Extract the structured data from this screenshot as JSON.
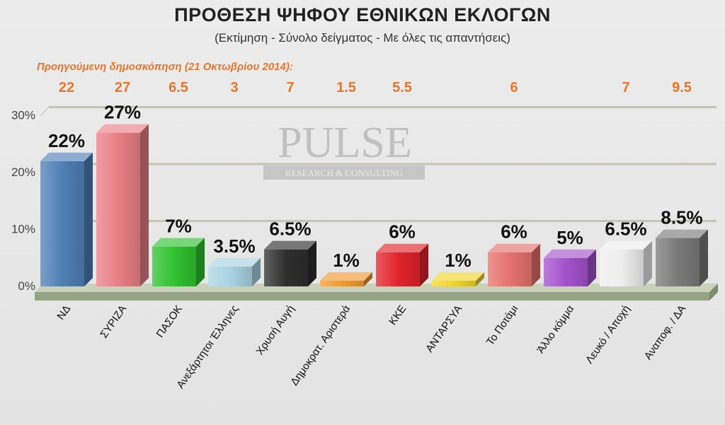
{
  "chart_data": {
    "type": "bar",
    "title": "ΠΡΟΘΕΣΗ ΨΗΦΟΥ ΕΘΝΙΚΩΝ ΕΚΛΟΓΩΝ",
    "subtitle": "(Εκτίμηση - Σύνολο δείγματος - Με όλες τις απαντήσεις)",
    "categories": [
      "ΝΔ",
      "ΣΥΡΙΖΑ",
      "ΠΑΣΟΚ",
      "Ανεξάρτητοι Έλληνες",
      "Χρυσή Αυγή",
      "Δημοκρατ. Αριστερά",
      "ΚΚΕ",
      "ΑΝΤΑΡΣΥΑ",
      "Το Ποτάμι",
      "Άλλο κόμμα",
      "Λευκό / Αποχή",
      "Αναποφ. / ΔΑ"
    ],
    "values": [
      22,
      27,
      7,
      3.5,
      6.5,
      1,
      6,
      1,
      6,
      5,
      6.5,
      8.5
    ],
    "value_labels": [
      "22%",
      "27%",
      "7%",
      "3.5%",
      "6.5%",
      "1%",
      "6%",
      "1%",
      "6%",
      "5%",
      "6.5%",
      "8.5%"
    ],
    "colors": [
      "#4f7fb5",
      "#e87f86",
      "#2fc22f",
      "#a9d3e2",
      "#2e2e2e",
      "#f19a33",
      "#e1242b",
      "#f0d52a",
      "#e5726e",
      "#a452cc",
      "#eeeeee",
      "#7a7a7a"
    ],
    "yticks": [
      "0%",
      "10%",
      "20%",
      "30%"
    ],
    "ylim": [
      0,
      30
    ],
    "grid": true,
    "previous_poll": {
      "label": "Προηγούμενη δημοσκόπηση  (21 Οκτωβρίου 2014):",
      "values": [
        "22",
        "27",
        "6.5",
        "3",
        "7",
        "1.5",
        "5.5",
        "",
        "6",
        "",
        "7",
        "9.5"
      ]
    }
  },
  "watermark": {
    "brand": "PULSE",
    "tagline": "RESEARCH & CONSULTING"
  }
}
